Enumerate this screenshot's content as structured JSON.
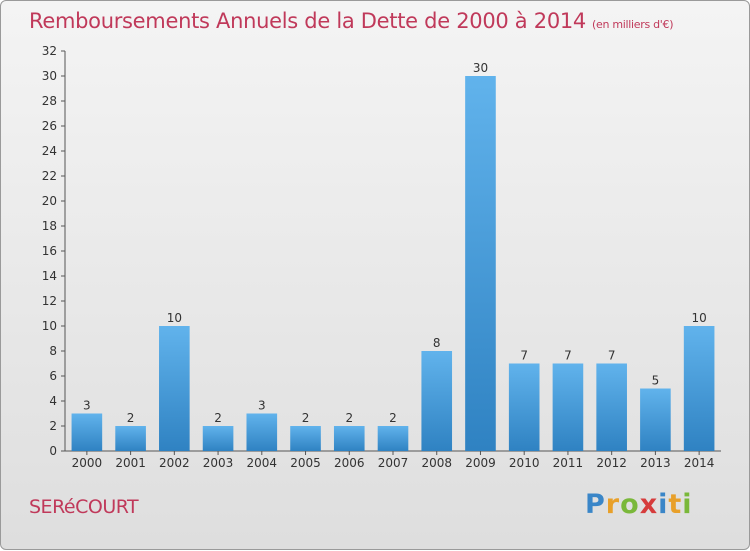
{
  "title": "Remboursements Annuels de la Dette de 2000 à 2014",
  "unit": "(en milliers d'€)",
  "commune": "SERéCOURT",
  "brand": {
    "letters": [
      "P",
      "r",
      "o",
      "x",
      "i",
      "t",
      "i"
    ],
    "colors": [
      "#3a86c8",
      "#e8a02a",
      "#7ab83a",
      "#d63c3c",
      "#3a86c8",
      "#e8a02a",
      "#7ab83a"
    ]
  },
  "colors": {
    "bar_top": "#61b3ec",
    "bar_bottom": "#2f82c2",
    "title": "#c0395a"
  },
  "chart_data": {
    "type": "bar",
    "title": "Remboursements Annuels de la Dette de 2000 à 2014",
    "ylabel": "",
    "xlabel": "",
    "categories": [
      "2000",
      "2001",
      "2002",
      "2003",
      "2004",
      "2005",
      "2006",
      "2007",
      "2008",
      "2009",
      "2010",
      "2011",
      "2012",
      "2013",
      "2014"
    ],
    "values": [
      3,
      2,
      10,
      2,
      3,
      2,
      2,
      2,
      8,
      30,
      7,
      7,
      7,
      5,
      10
    ],
    "ylim": [
      0,
      32
    ],
    "yticks": [
      0,
      2,
      4,
      6,
      8,
      10,
      12,
      14,
      16,
      18,
      20,
      22,
      24,
      26,
      28,
      30,
      32
    ],
    "grid": false,
    "legend": "none"
  }
}
